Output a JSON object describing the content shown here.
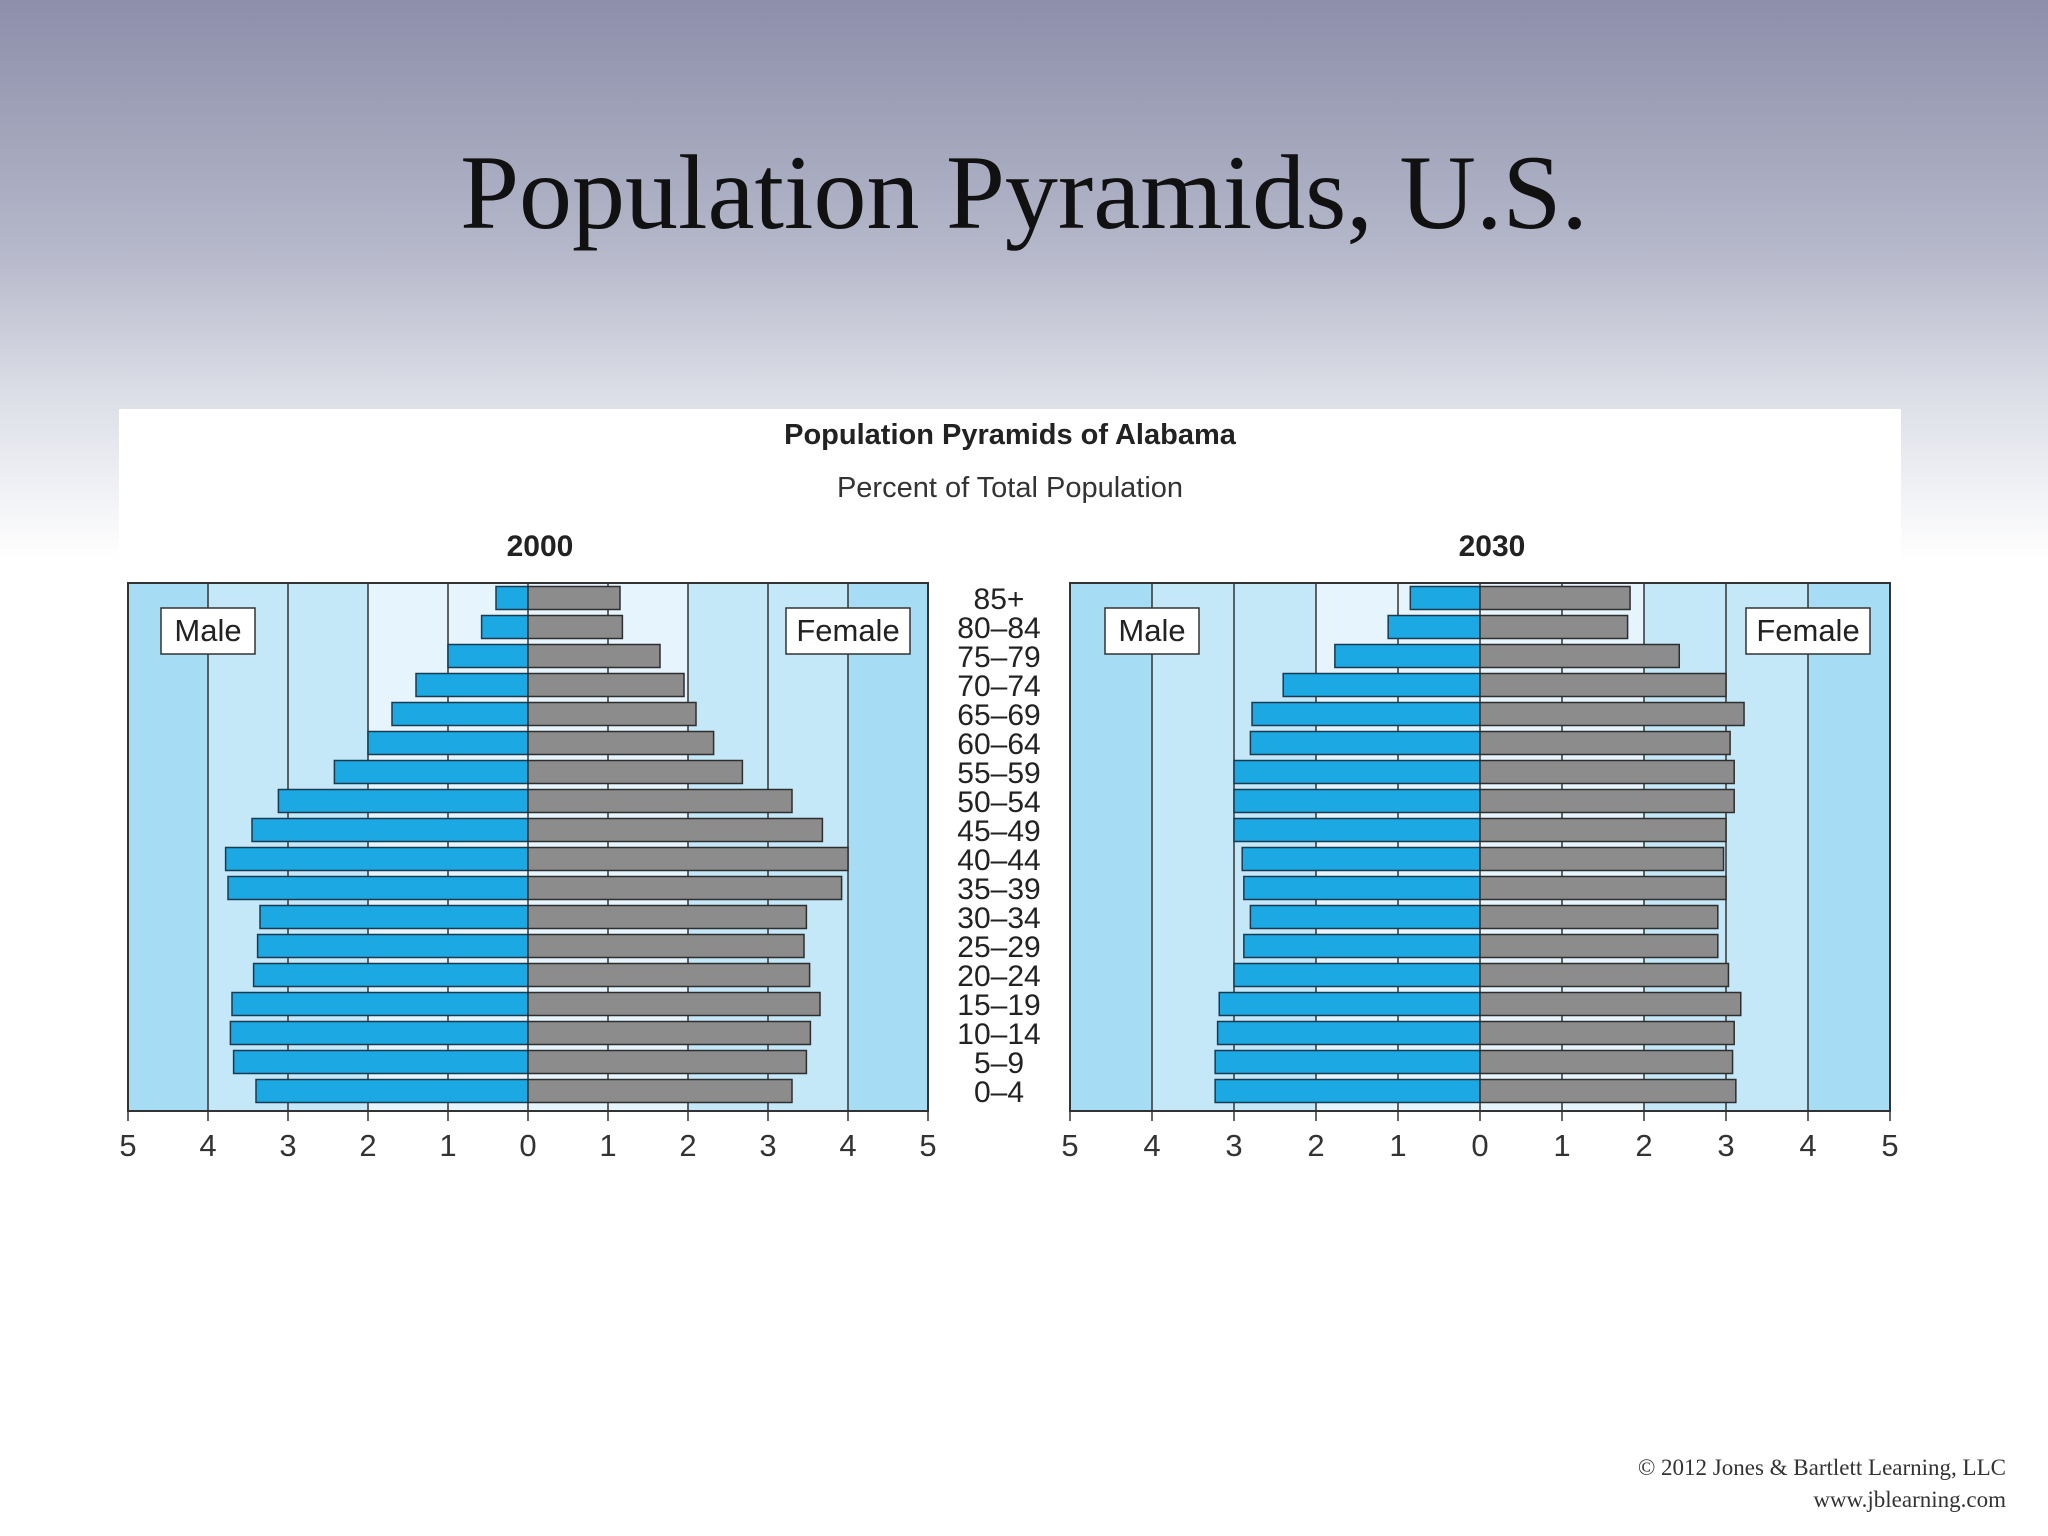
{
  "slide": {
    "title": "Population Pyramids, U.S.",
    "credit_line1": "© 2012 Jones & Bartlett Learning, LLC",
    "credit_line2": "www.jblearning.com"
  },
  "colors": {
    "male": "#1ba8e3",
    "female": "#8c8c8c",
    "panel_outer": "#a6dcf4",
    "panel_mid": "#c4e8f8",
    "panel_inner": "#e6f5fd"
  },
  "chart_data": {
    "type": "bar",
    "title": "Population Pyramids of Alabama",
    "subtitle": "Percent of Total Population",
    "categories": [
      "85+",
      "80–84",
      "75–79",
      "70–74",
      "65–69",
      "60–64",
      "55–59",
      "50–54",
      "45–49",
      "40–44",
      "35–39",
      "30–34",
      "25–29",
      "20–24",
      "15–19",
      "10–14",
      "5–9",
      "0–4"
    ],
    "xlim": [
      0,
      5
    ],
    "x_ticks": [
      "5",
      "4",
      "3",
      "2",
      "1",
      "0",
      "1",
      "2",
      "3",
      "4",
      "5"
    ],
    "grid": true,
    "panels": [
      {
        "year": "2000",
        "male_label": "Male",
        "female_label": "Female",
        "series": [
          {
            "name": "Male",
            "values": [
              0.4,
              0.58,
              1.0,
              1.4,
              1.7,
              2.0,
              2.42,
              3.12,
              3.45,
              3.78,
              3.75,
              3.35,
              3.38,
              3.43,
              3.7,
              3.72,
              3.68,
              3.4
            ]
          },
          {
            "name": "Female",
            "values": [
              1.15,
              1.18,
              1.65,
              1.95,
              2.1,
              2.32,
              2.68,
              3.3,
              3.68,
              4.0,
              3.92,
              3.48,
              3.45,
              3.52,
              3.65,
              3.53,
              3.48,
              3.3
            ]
          }
        ]
      },
      {
        "year": "2030",
        "male_label": "Male",
        "female_label": "Female",
        "series": [
          {
            "name": "Male",
            "values": [
              0.85,
              1.12,
              1.77,
              2.4,
              2.78,
              2.8,
              3.0,
              3.0,
              3.0,
              2.9,
              2.88,
              2.8,
              2.88,
              3.0,
              3.18,
              3.2,
              3.23,
              3.23
            ]
          },
          {
            "name": "Female",
            "values": [
              1.83,
              1.8,
              2.43,
              3.0,
              3.22,
              3.05,
              3.1,
              3.1,
              3.0,
              2.97,
              3.0,
              2.9,
              2.9,
              3.03,
              3.18,
              3.1,
              3.08,
              3.12
            ]
          }
        ]
      }
    ]
  }
}
